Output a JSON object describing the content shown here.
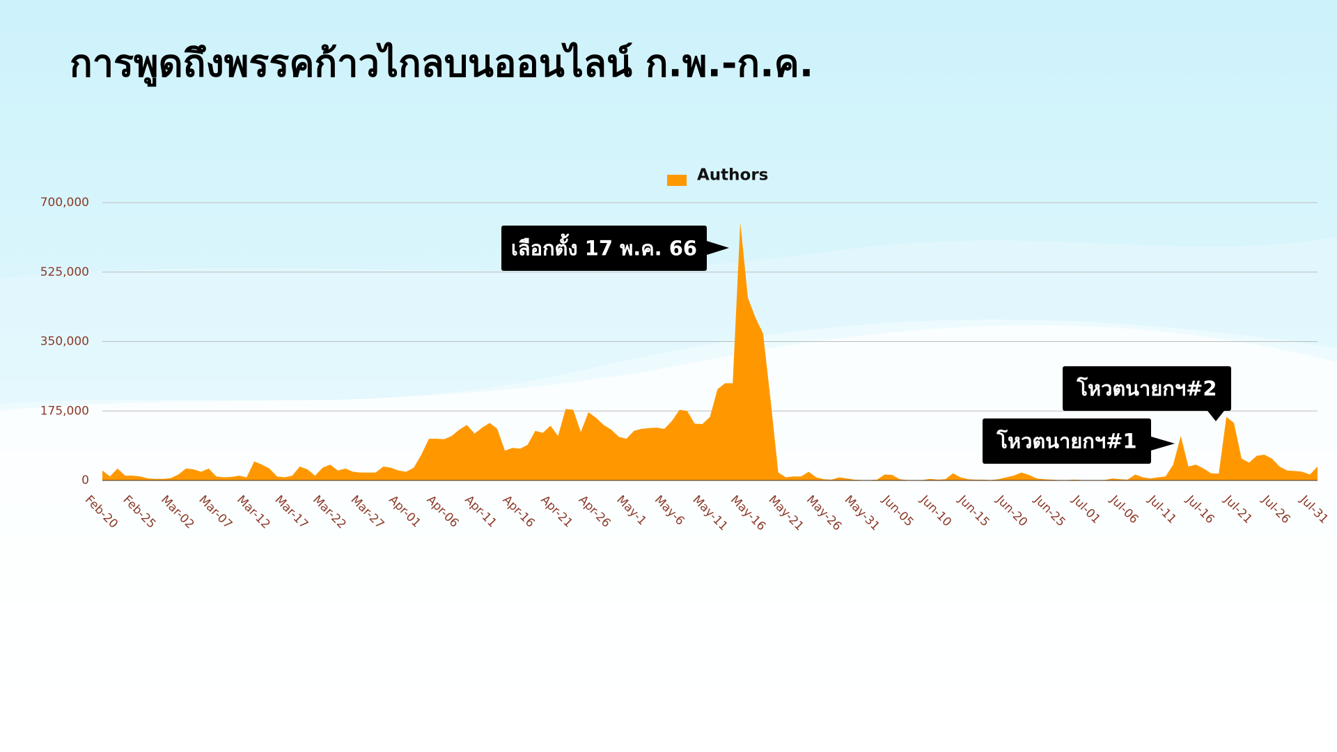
{
  "chart_data": {
    "type": "area",
    "title": "การพูดถึงพรรคก้าวไกลบนออนไลน์ ก.พ.-ก.ค.",
    "categories": [
      "Feb-20",
      null,
      null,
      null,
      null,
      "Feb-25",
      null,
      null,
      null,
      null,
      "Mar-02",
      null,
      null,
      null,
      null,
      "Mar-07",
      null,
      null,
      null,
      null,
      "Mar-12",
      null,
      null,
      null,
      null,
      "Mar-17",
      null,
      null,
      null,
      null,
      "Mar-22",
      null,
      null,
      null,
      null,
      "Mar-27",
      null,
      null,
      null,
      null,
      "Apr-01",
      null,
      null,
      null,
      null,
      "Apr-06",
      null,
      null,
      null,
      null,
      "Apr-11",
      null,
      null,
      null,
      null,
      "Apr-16",
      null,
      null,
      null,
      null,
      "Apr-21",
      null,
      null,
      null,
      null,
      "Apr-26",
      null,
      null,
      null,
      null,
      "May-1",
      null,
      null,
      null,
      null,
      "May-6",
      null,
      null,
      null,
      null,
      "May-11",
      null,
      null,
      null,
      null,
      "May-16",
      null,
      null,
      null,
      null,
      "May-21",
      null,
      null,
      null,
      null,
      "May-26",
      null,
      null,
      null,
      null,
      "May-31",
      null,
      null,
      null,
      null,
      "Jun-05",
      null,
      null,
      null,
      null,
      "Jun-10",
      null,
      null,
      null,
      null,
      "Jun-15",
      null,
      null,
      null,
      null,
      "Jun-20",
      null,
      null,
      null,
      null,
      "Jun-25",
      null,
      null,
      null,
      null,
      "Jul-01",
      null,
      null,
      null,
      null,
      "Jul-06",
      null,
      null,
      null,
      null,
      "Jul-11",
      null,
      null,
      null,
      null,
      "Jul-16",
      null,
      null,
      null,
      null,
      "Jul-21",
      null,
      null,
      null,
      null,
      "Jul-26",
      null,
      null,
      null,
      null,
      "Jul-31"
    ],
    "series": [
      {
        "name": "Authors",
        "color": "#ff9800",
        "values": [
          25000,
          10000,
          30000,
          12000,
          12000,
          10000,
          5000,
          4000,
          4000,
          6000,
          15000,
          30000,
          28000,
          22000,
          30000,
          10000,
          8000,
          9000,
          12000,
          8000,
          48000,
          40000,
          30000,
          10000,
          8000,
          12000,
          35000,
          28000,
          12000,
          32000,
          40000,
          25000,
          30000,
          22000,
          20000,
          20000,
          20000,
          35000,
          32000,
          25000,
          22000,
          32000,
          65000,
          105000,
          105000,
          104000,
          112000,
          128000,
          140000,
          118000,
          133000,
          145000,
          130000,
          75000,
          82000,
          80000,
          90000,
          125000,
          120000,
          138000,
          112000,
          180000,
          178000,
          122000,
          172000,
          158000,
          140000,
          128000,
          110000,
          105000,
          125000,
          130000,
          132000,
          133000,
          130000,
          150000,
          178000,
          175000,
          143000,
          142000,
          160000,
          230000,
          245000,
          245000,
          650000,
          460000,
          410000,
          370000,
          200000,
          20000,
          8000,
          10000,
          10000,
          22000,
          8000,
          3000,
          2000,
          8000,
          5000,
          2000,
          1000,
          1000,
          2000,
          15000,
          14000,
          3000,
          1000,
          1000,
          1000,
          4000,
          2000,
          3000,
          18000,
          8000,
          3000,
          2000,
          2000,
          1000,
          3000,
          8000,
          12000,
          20000,
          14000,
          5000,
          3000,
          2000,
          1000,
          1000,
          2000,
          1000,
          1000,
          1000,
          1000,
          5000,
          3000,
          2000,
          15000,
          8000,
          5000,
          8000,
          10000,
          40000,
          112000,
          35000,
          40000,
          30000,
          18000,
          17000,
          160000,
          145000,
          55000,
          45000,
          62000,
          65000,
          55000,
          35000,
          25000,
          24000,
          22000,
          15000,
          35000
        ]
      }
    ],
    "ylim": [
      0,
      700000
    ],
    "yticks": [
      0,
      {
        "value": 175000,
        "label": "175,000"
      },
      {
        "value": 350000,
        "label": "350,000"
      },
      {
        "value": 525000,
        "label": "525,000"
      },
      {
        "value": 700000,
        "label": "700,000"
      }
    ],
    "grid": true,
    "legend": "top",
    "annotations": [
      "เลือกตั้ง 17 พ.ค. 66",
      "โหวตนายกฯ#1",
      "โหวตนายกฯ#2"
    ]
  }
}
